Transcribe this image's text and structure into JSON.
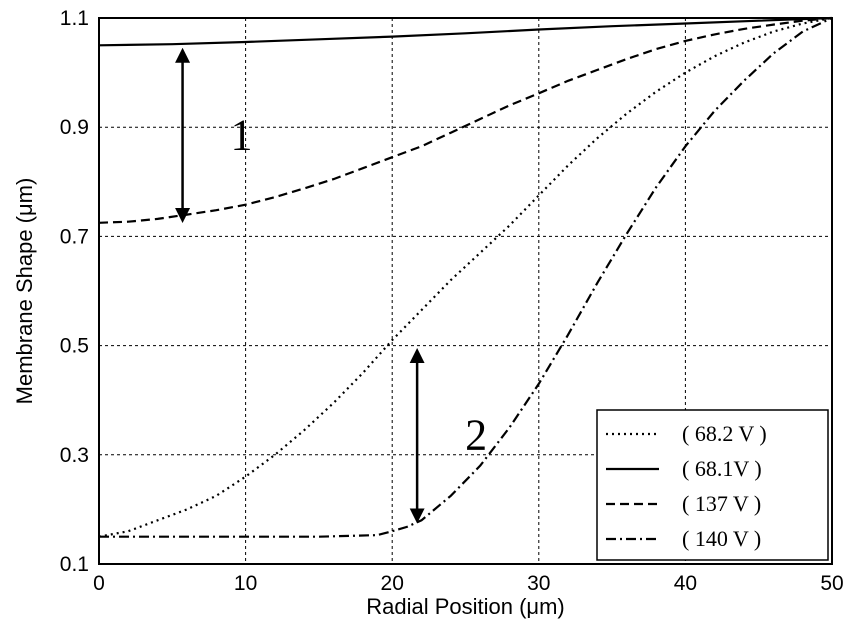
{
  "chart_data": {
    "type": "line",
    "title": "",
    "xlabel": "Radial Position (μm)",
    "ylabel": "Membrane Shape (μm)",
    "xlim": [
      0,
      50
    ],
    "ylim": [
      0.1,
      1.1
    ],
    "xticks": [
      "0",
      "10",
      "20",
      "30",
      "40",
      "50"
    ],
    "yticks": [
      "0.1",
      "0.3",
      "0.5",
      "0.7",
      "0.9",
      "1.1"
    ],
    "grid": true,
    "legend_position": "bottom-right",
    "series": [
      {
        "name": "( 68.2 V )",
        "style": "dotted",
        "x": [
          0,
          2,
          4,
          6,
          8,
          10,
          12,
          14,
          16,
          18,
          20,
          22,
          24,
          26,
          28,
          30,
          32,
          34,
          36,
          38,
          40,
          42,
          44,
          46,
          48,
          50
        ],
        "y": [
          0.15,
          0.16,
          0.18,
          0.2,
          0.225,
          0.26,
          0.3,
          0.345,
          0.395,
          0.45,
          0.51,
          0.565,
          0.62,
          0.67,
          0.72,
          0.775,
          0.83,
          0.88,
          0.925,
          0.965,
          1.0,
          1.03,
          1.055,
          1.075,
          1.09,
          1.1
        ]
      },
      {
        "name": "( 68.1V )",
        "style": "solid",
        "x": [
          0,
          5,
          10,
          15,
          20,
          25,
          30,
          35,
          40,
          45,
          50
        ],
        "y": [
          1.05,
          1.052,
          1.056,
          1.061,
          1.066,
          1.072,
          1.079,
          1.085,
          1.09,
          1.095,
          1.1
        ]
      },
      {
        "name": "( 137 V )",
        "style": "dashed",
        "x": [
          0,
          2,
          4,
          6,
          8,
          10,
          12,
          14,
          16,
          18,
          20,
          22,
          24,
          26,
          28,
          30,
          32,
          34,
          36,
          38,
          40,
          42,
          44,
          46,
          48,
          50
        ],
        "y": [
          0.725,
          0.727,
          0.732,
          0.74,
          0.748,
          0.758,
          0.772,
          0.788,
          0.805,
          0.825,
          0.845,
          0.865,
          0.89,
          0.915,
          0.94,
          0.962,
          0.985,
          1.005,
          1.025,
          1.043,
          1.058,
          1.07,
          1.08,
          1.088,
          1.095,
          1.1
        ]
      },
      {
        "name": "( 140 V )",
        "style": "dashdot",
        "x": [
          0,
          5,
          10,
          15,
          19,
          20,
          21,
          22,
          24,
          26,
          28,
          30,
          32,
          34,
          36,
          38,
          40,
          42,
          44,
          46,
          48,
          50
        ],
        "y": [
          0.15,
          0.15,
          0.15,
          0.15,
          0.153,
          0.16,
          0.168,
          0.18,
          0.225,
          0.28,
          0.35,
          0.43,
          0.52,
          0.615,
          0.705,
          0.79,
          0.865,
          0.93,
          0.985,
          1.035,
          1.075,
          1.1
        ]
      }
    ],
    "annotations": [
      {
        "text": "1",
        "arrow_x": 5.7,
        "arrow_y_from": 0.73,
        "arrow_y_to": 1.04
      },
      {
        "text": "2",
        "arrow_x": 21.7,
        "arrow_y_from": 0.18,
        "arrow_y_to": 0.49
      }
    ]
  }
}
